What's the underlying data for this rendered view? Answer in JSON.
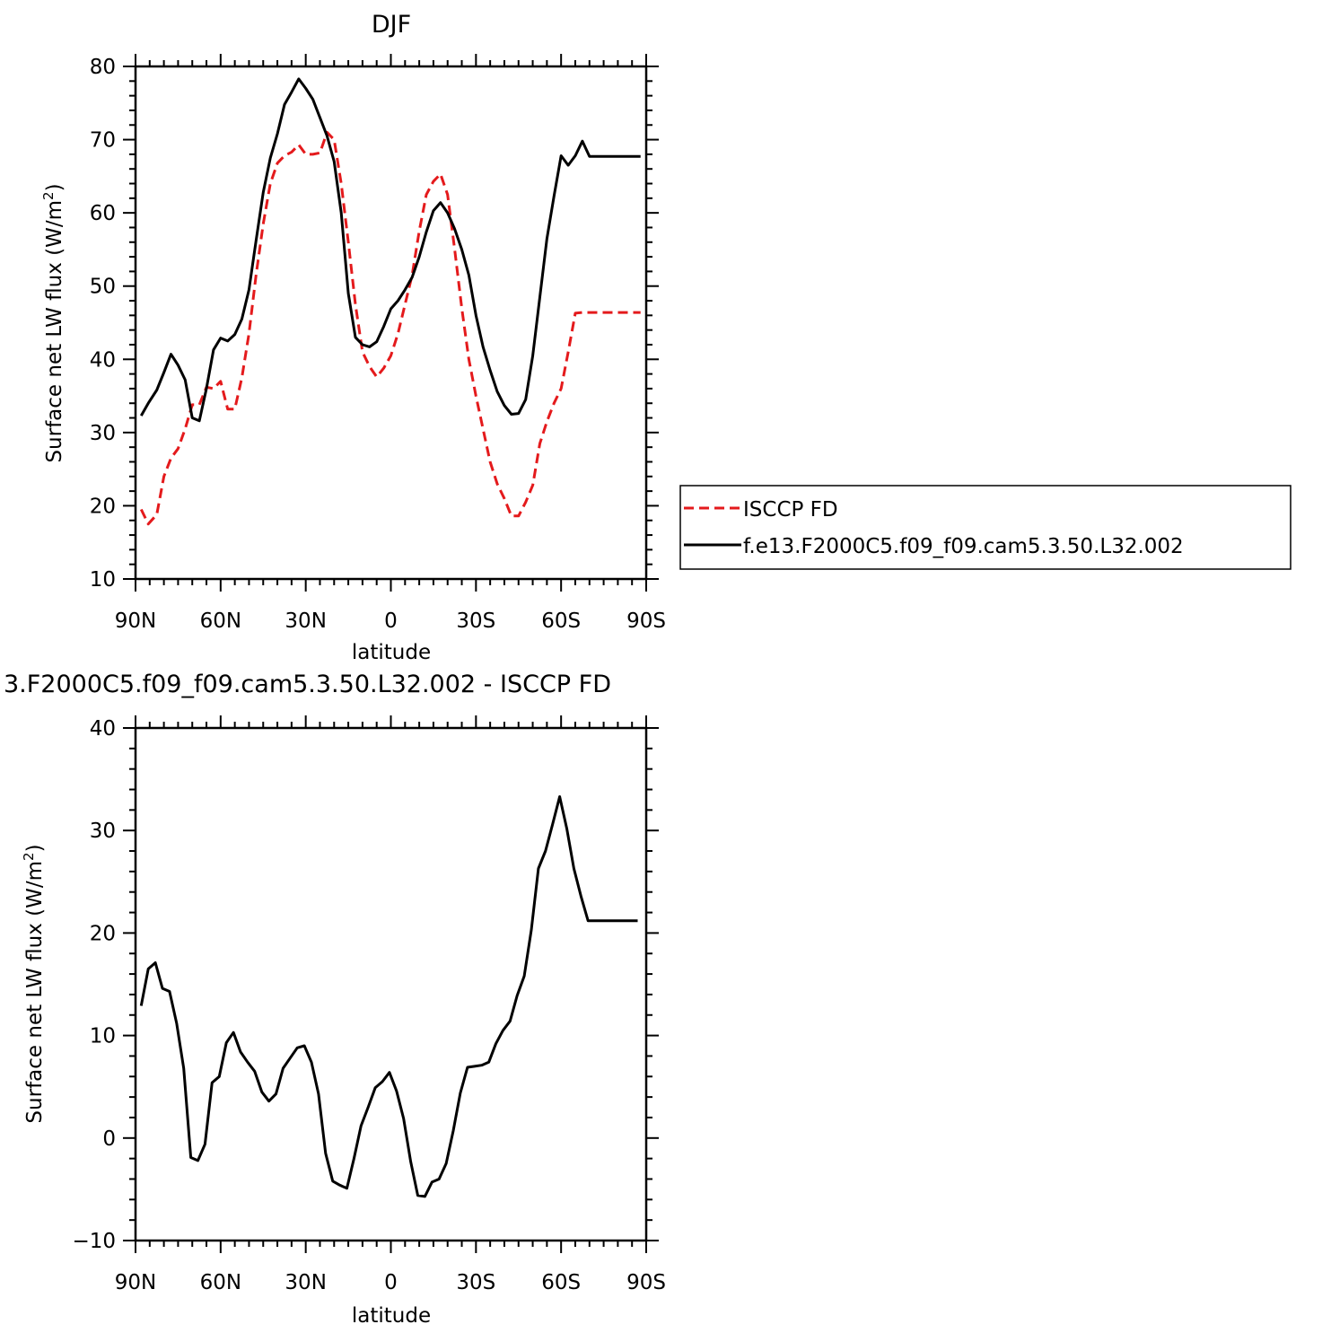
{
  "chart_data": [
    {
      "type": "line",
      "title": "DJF",
      "xlabel": "latitude",
      "ylabel": "Surface net LW flux (W/m",
      "ylabel_sup": "2",
      "ylabel_end": ")",
      "xlim": [
        -90,
        90
      ],
      "ylim": [
        10,
        80
      ],
      "y_ticks": [
        10,
        20,
        30,
        40,
        50,
        60,
        70,
        80
      ],
      "x_ticks": [
        -90,
        -60,
        -30,
        0,
        30,
        60,
        90
      ],
      "x_tick_labels": [
        "90N",
        "60N",
        "30N",
        "0",
        "30S",
        "60S",
        "90S"
      ],
      "legend": {
        "placement": "right",
        "entries": [
          "ISCCP FD",
          "f.e13.F2000C5.f09_f09.cam5.3.50.L32.002"
        ]
      },
      "series": [
        {
          "name": "ISCCP FD",
          "color": "#e41a1c",
          "dash": true,
          "x": [
            -88,
            -85.5,
            -82.5,
            -80,
            -77.5,
            -75,
            -72.5,
            -70,
            -67.5,
            -65,
            -62.5,
            -60,
            -57.5,
            -55,
            -52.5,
            -50,
            -47.5,
            -45,
            -42.5,
            -40,
            -37.5,
            -35,
            -32.5,
            -30,
            -27.5,
            -25,
            -22.5,
            -20,
            -17.5,
            -15,
            -12.5,
            -10,
            -7.5,
            -5,
            -2.5,
            0,
            2.5,
            5,
            7.5,
            10,
            12.5,
            15,
            17.5,
            20,
            22.5,
            25,
            27.5,
            30,
            32.5,
            35,
            37.5,
            40,
            42.5,
            45,
            47.5,
            50,
            52.5,
            55,
            57.5,
            60,
            62.5,
            65,
            67.5,
            70,
            72.5,
            75,
            77.5,
            80,
            82.5,
            85,
            88
          ],
          "values": [
            19.5,
            17.5,
            18.8,
            24,
            26.5,
            27.8,
            30.5,
            33.8,
            33.8,
            36.2,
            36,
            37,
            33.2,
            33.2,
            37.5,
            43.5,
            51.5,
            58.5,
            64,
            66.8,
            67.8,
            68.3,
            69.3,
            68,
            68,
            68.2,
            71,
            70,
            64,
            56,
            47.5,
            41,
            39,
            37.6,
            38.8,
            40.5,
            43.5,
            47.5,
            51.5,
            57.5,
            62.5,
            64.3,
            65.3,
            62.5,
            55,
            47,
            40,
            35,
            30.5,
            26,
            23,
            21,
            18.6,
            18.6,
            20.5,
            22.8,
            28.5,
            31.5,
            34,
            36,
            41,
            46.3,
            46.4,
            46.4,
            46.4,
            46.4,
            46.4,
            46.4,
            46.4,
            46.4,
            46.4
          ]
        },
        {
          "name": "f.e13.F2000C5.f09_f09.cam5.3.50.L32.002",
          "color": "#000000",
          "dash": false,
          "x": [
            -88,
            -85.5,
            -82.5,
            -80,
            -77.5,
            -75,
            -72.5,
            -70,
            -67.5,
            -65,
            -62.5,
            -60,
            -57.5,
            -55,
            -52.5,
            -50,
            -47.5,
            -45,
            -42.5,
            -40,
            -37.5,
            -35,
            -32.5,
            -30,
            -27.5,
            -25,
            -22.5,
            -20,
            -17.5,
            -15,
            -12.5,
            -10,
            -7.5,
            -5,
            -2.5,
            0,
            2.5,
            5,
            7.5,
            10,
            12.5,
            15,
            17.5,
            20,
            22.5,
            25,
            27.5,
            30,
            32.5,
            35,
            37.5,
            40,
            42.5,
            45,
            47.5,
            50,
            52.5,
            55,
            57.5,
            60,
            62.5,
            65,
            67.5,
            70,
            72.5,
            75,
            77.5,
            80,
            82.5,
            85,
            88
          ],
          "values": [
            32.3,
            34,
            35.8,
            38.2,
            40.7,
            39.2,
            37.2,
            32,
            31.6,
            36,
            41.3,
            42.9,
            42.5,
            43.4,
            45.5,
            49.5,
            56.2,
            62.8,
            67.5,
            70.8,
            74.8,
            76.5,
            78.3,
            77,
            75.5,
            73,
            70.5,
            67,
            60,
            49,
            43,
            42,
            41.7,
            42.4,
            44.5,
            46.9,
            48,
            49.5,
            51.2,
            54,
            57.4,
            60.3,
            61.4,
            60,
            57.8,
            55,
            51.5,
            46,
            41.7,
            38.5,
            35.6,
            33.7,
            32.5,
            32.6,
            34.5,
            40.5,
            48.5,
            56.5,
            62.3,
            67.8,
            66.5,
            67.8,
            69.8,
            67.7,
            67.7,
            67.7,
            67.7,
            67.7,
            67.7,
            67.7,
            67.7
          ]
        }
      ]
    },
    {
      "type": "line",
      "title": "3.F2000C5.f09_f09.cam5.3.50.L32.002 - ISCCP FD",
      "xlabel": "latitude",
      "ylabel": "Surface net LW flux (W/m",
      "ylabel_sup": "2",
      "ylabel_end": ")",
      "xlim": [
        -90,
        90
      ],
      "ylim": [
        -10,
        40
      ],
      "y_ticks": [
        -10,
        0,
        10,
        20,
        30,
        40
      ],
      "x_ticks": [
        -90,
        -60,
        -30,
        0,
        30,
        60,
        90
      ],
      "x_tick_labels": [
        "90N",
        "60N",
        "30N",
        "0",
        "30S",
        "60S",
        "90S"
      ],
      "series": [
        {
          "color": "#000000",
          "dash": false,
          "x": [
            -88,
            -85.5,
            -83,
            -80.5,
            -78,
            -75.5,
            -73,
            -70.5,
            -68,
            -65.5,
            -63,
            -60.5,
            -58,
            -55.5,
            -53,
            -50.5,
            -48,
            -45.5,
            -43,
            -40.5,
            -38,
            -35.5,
            -33,
            -30.5,
            -28,
            -25.5,
            -23,
            -20.5,
            -18,
            -15.5,
            -13,
            -10.5,
            -8,
            -5.5,
            -3,
            -0.5,
            2,
            4.5,
            7,
            9.5,
            12,
            14.5,
            17,
            19.5,
            22,
            24.5,
            27,
            29.5,
            32,
            34.5,
            37,
            39.5,
            42,
            44.5,
            47,
            49.5,
            52,
            54.5,
            57,
            59.5,
            62,
            64.5,
            67,
            69.5,
            72,
            74.5,
            77,
            79.5,
            82,
            84.5,
            87
          ],
          "values": [
            12.9,
            16.5,
            17.1,
            14.6,
            14.3,
            11.2,
            6.8,
            -1.9,
            -2.2,
            -0.6,
            5.4,
            6,
            9.3,
            10.3,
            8.4,
            7.4,
            6.5,
            4.5,
            3.6,
            4.3,
            6.8,
            7.8,
            8.8,
            9,
            7.4,
            4.3,
            -1.5,
            -4.2,
            -4.6,
            -4.9,
            -2,
            1.2,
            3,
            4.9,
            5.5,
            6.4,
            4.6,
            1.9,
            -2.3,
            -5.6,
            -5.7,
            -4.3,
            -4,
            -2.5,
            0.7,
            4.4,
            6.9,
            7,
            7.1,
            7.4,
            9.2,
            10.5,
            11.4,
            13.9,
            15.8,
            20.3,
            26.3,
            28,
            30.6,
            33.3,
            30.2,
            26.3,
            23.6,
            21.2,
            21.2,
            21.2,
            21.2,
            21.2,
            21.2,
            21.2,
            21.2
          ]
        }
      ]
    }
  ]
}
